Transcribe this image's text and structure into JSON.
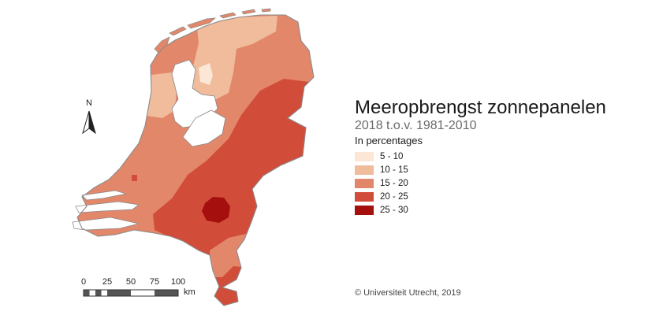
{
  "title": "Meeropbrengst zonnepanelen",
  "subtitle": "2018 t.o.v. 1981-2010",
  "unit_label": "In percentages",
  "legend": [
    {
      "label": "5 - 10",
      "color": "#fce6d6"
    },
    {
      "label": "10 - 15",
      "color": "#f0bc9c"
    },
    {
      "label": "15 - 20",
      "color": "#e3876a"
    },
    {
      "label": "20 - 25",
      "color": "#d24c3a"
    },
    {
      "label": "25 - 30",
      "color": "#a50f0d"
    }
  ],
  "north_arrow": {
    "label": "N",
    "icon": "north-arrow-icon"
  },
  "scale_bar": {
    "ticks": [
      "0",
      "25",
      "50",
      "75",
      "100"
    ],
    "unit": "km"
  },
  "credit": "© Universiteit Utrecht, 2019",
  "map": {
    "region": "Netherlands",
    "outline_color": "#8a8a8a"
  }
}
